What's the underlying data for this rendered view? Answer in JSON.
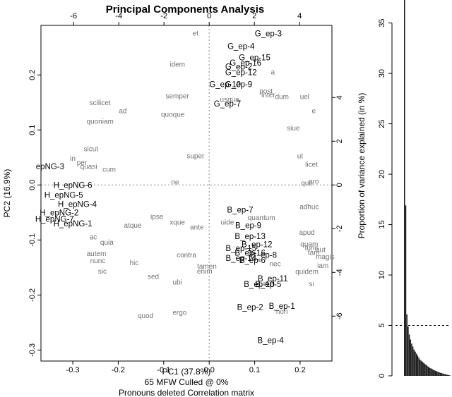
{
  "chart_data": [
    {
      "type": "scatter",
      "title": "Principal Components Analysis",
      "xlabel": "PC1 (37.8%)",
      "ylabel": "PC2 (16.9%)",
      "subtitle_lines": [
        "65 MFW  Culled @ 0%",
        "Pronouns deleted Correlation matrix"
      ],
      "xlim": [
        -0.37,
        0.27
      ],
      "ylim": [
        -0.32,
        0.29
      ],
      "x_ticks": [
        "-0.3",
        "-0.2",
        "-0.1",
        "0.0",
        "0.1",
        "0.2"
      ],
      "y_ticks": [
        "-0.3",
        "-0.2",
        "-0.1",
        "0.0",
        "0.1",
        "0.2"
      ],
      "x_ticks_top": [
        "-6",
        "-4",
        "-2",
        "0",
        "2",
        "4"
      ],
      "y_ticks_right": [
        "-6",
        "-4",
        "-2",
        "0",
        "2",
        "4"
      ],
      "reference_lines": "dotted at PC1 = 0 and PC2 = 0",
      "text_labels": [
        {
          "label": "G_ep-3",
          "x": 0.13,
          "y": 0.275
        },
        {
          "label": "G_ep-4",
          "x": 0.07,
          "y": 0.252
        },
        {
          "label": "G_ep-15",
          "x": 0.1,
          "y": 0.232
        },
        {
          "label": "G_ep-16",
          "x": 0.08,
          "y": 0.222
        },
        {
          "label": "G_ep-2",
          "x": 0.065,
          "y": 0.215
        },
        {
          "label": "G_ep-12",
          "x": 0.07,
          "y": 0.205
        },
        {
          "label": "G_ep-10",
          "x": 0.035,
          "y": 0.183
        },
        {
          "label": "G_ep-9",
          "x": 0.065,
          "y": 0.183
        },
        {
          "label": "G_ep-7",
          "x": 0.04,
          "y": 0.148
        },
        {
          "label": "epNG-3",
          "x": -0.35,
          "y": 0.034
        },
        {
          "label": "H_epNG-6",
          "x": -0.3,
          "y": 0.0
        },
        {
          "label": "H_epNG-5",
          "x": -0.32,
          "y": -0.018
        },
        {
          "label": "H_epNG-4",
          "x": -0.29,
          "y": -0.035
        },
        {
          "label": "H_epNG-2",
          "x": -0.33,
          "y": -0.05
        },
        {
          "label": "H_epNG-7",
          "x": -0.34,
          "y": -0.062
        },
        {
          "label": "H_epNG-1",
          "x": -0.3,
          "y": -0.07
        },
        {
          "label": "B_ep-7",
          "x": 0.068,
          "y": -0.045
        },
        {
          "label": "B_ep-9",
          "x": 0.086,
          "y": -0.073
        },
        {
          "label": "B_ep-13",
          "x": 0.09,
          "y": -0.093
        },
        {
          "label": "B_ep-12",
          "x": 0.105,
          "y": -0.108
        },
        {
          "label": "B_ep-15",
          "x": 0.07,
          "y": -0.115
        },
        {
          "label": "B_ep-16",
          "x": 0.09,
          "y": -0.123
        },
        {
          "label": "B_ep-8",
          "x": 0.12,
          "y": -0.127
        },
        {
          "label": "B_ep-14",
          "x": 0.07,
          "y": -0.133
        },
        {
          "label": "B_ep-6",
          "x": 0.095,
          "y": -0.137
        },
        {
          "label": "B_ep-11",
          "x": 0.14,
          "y": -0.17
        },
        {
          "label": "B_ep-5",
          "x": 0.13,
          "y": -0.18
        },
        {
          "label": "B_ep-10",
          "x": 0.11,
          "y": -0.18
        },
        {
          "label": "B_ep-2",
          "x": 0.09,
          "y": -0.222
        },
        {
          "label": "B_ep-1",
          "x": 0.16,
          "y": -0.22
        },
        {
          "label": "B_ep-4",
          "x": 0.135,
          "y": -0.282
        }
      ],
      "loading_words": [
        {
          "label": "et",
          "x": -0.03,
          "y": 0.275
        },
        {
          "label": "idem",
          "x": -0.07,
          "y": 0.219
        },
        {
          "label": "a",
          "x": 0.14,
          "y": 0.205
        },
        {
          "label": "post",
          "x": 0.125,
          "y": 0.17
        },
        {
          "label": "inter",
          "x": 0.13,
          "y": 0.163
        },
        {
          "label": "dum",
          "x": 0.16,
          "y": 0.16
        },
        {
          "label": "uel",
          "x": 0.21,
          "y": 0.16
        },
        {
          "label": "semper",
          "x": -0.07,
          "y": 0.161
        },
        {
          "label": "usque",
          "x": 0.045,
          "y": 0.155
        },
        {
          "label": "scilicet",
          "x": -0.24,
          "y": 0.149
        },
        {
          "label": "ad",
          "x": -0.19,
          "y": 0.134
        },
        {
          "label": "e",
          "x": 0.23,
          "y": 0.134
        },
        {
          "label": "quoque",
          "x": -0.08,
          "y": 0.128
        },
        {
          "label": "quoniam",
          "x": -0.24,
          "y": 0.115
        },
        {
          "label": "siue",
          "x": 0.185,
          "y": 0.103
        },
        {
          "label": "sicut",
          "x": -0.26,
          "y": 0.065
        },
        {
          "label": "super",
          "x": -0.03,
          "y": 0.052
        },
        {
          "label": "ut",
          "x": 0.2,
          "y": 0.052
        },
        {
          "label": "in",
          "x": -0.3,
          "y": 0.048
        },
        {
          "label": "per",
          "x": -0.28,
          "y": 0.04
        },
        {
          "label": "licet",
          "x": 0.225,
          "y": 0.037
        },
        {
          "label": "quasi",
          "x": -0.265,
          "y": 0.033
        },
        {
          "label": "cum",
          "x": -0.22,
          "y": 0.028
        },
        {
          "label": "ne",
          "x": -0.075,
          "y": 0.005
        },
        {
          "label": "quo",
          "x": 0.215,
          "y": 0.003
        },
        {
          "label": "pro",
          "x": 0.23,
          "y": 0.006
        },
        {
          "label": "adhuc",
          "x": 0.22,
          "y": -0.04
        },
        {
          "label": "quantum",
          "x": 0.115,
          "y": -0.06
        },
        {
          "label": "uide",
          "x": 0.04,
          "y": -0.068
        },
        {
          "label": "ipse",
          "x": -0.115,
          "y": -0.058
        },
        {
          "label": "xque",
          "x": -0.07,
          "y": -0.068
        },
        {
          "label": "atque",
          "x": -0.168,
          "y": -0.074
        },
        {
          "label": "ante",
          "x": -0.027,
          "y": -0.077
        },
        {
          "label": "apud",
          "x": 0.215,
          "y": -0.087
        },
        {
          "label": "ac",
          "x": -0.255,
          "y": -0.095
        },
        {
          "label": "quia",
          "x": -0.225,
          "y": -0.105
        },
        {
          "label": "quam",
          "x": 0.22,
          "y": -0.108
        },
        {
          "label": "tunc",
          "x": 0.225,
          "y": -0.115
        },
        {
          "label": "aut",
          "x": 0.245,
          "y": -0.118
        },
        {
          "label": "tam",
          "x": 0.23,
          "y": -0.123
        },
        {
          "label": "autem",
          "x": -0.248,
          "y": -0.125
        },
        {
          "label": "magis",
          "x": 0.255,
          "y": -0.131
        },
        {
          "label": "nunc",
          "x": -0.245,
          "y": -0.138
        },
        {
          "label": "contra",
          "x": -0.05,
          "y": -0.128
        },
        {
          "label": "nec",
          "x": 0.145,
          "y": -0.144
        },
        {
          "label": "iam",
          "x": 0.25,
          "y": -0.147
        },
        {
          "label": "hic",
          "x": -0.165,
          "y": -0.142
        },
        {
          "label": "tamen",
          "x": -0.005,
          "y": -0.148
        },
        {
          "label": "enim",
          "x": -0.01,
          "y": -0.157
        },
        {
          "label": "sic",
          "x": -0.235,
          "y": -0.157
        },
        {
          "label": "quidem",
          "x": 0.215,
          "y": -0.158
        },
        {
          "label": "sed",
          "x": -0.123,
          "y": -0.167
        },
        {
          "label": "ubi",
          "x": -0.07,
          "y": -0.177
        },
        {
          "label": "si",
          "x": 0.225,
          "y": -0.18
        },
        {
          "label": "non",
          "x": 0.16,
          "y": -0.23
        },
        {
          "label": "ergo",
          "x": -0.065,
          "y": -0.232
        },
        {
          "label": "quod",
          "x": -0.14,
          "y": -0.238
        }
      ]
    },
    {
      "type": "bar",
      "ylabel": "Proportion of variance explained (in %)",
      "ylim": [
        0,
        37
      ],
      "y_ticks": [
        "0",
        "5",
        "10",
        "15",
        "20",
        "25",
        "30",
        "35"
      ],
      "values": [
        37.8,
        16.9,
        6.1,
        4.9,
        4.1,
        3.6,
        3.2,
        2.9,
        2.6,
        2.4,
        2.2,
        2.0,
        1.8,
        1.6,
        1.5,
        1.4,
        1.3,
        1.2,
        1.1,
        1.0,
        0.9,
        0.8,
        0.75,
        0.7,
        0.6,
        0.55,
        0.5,
        0.45,
        0.4,
        0.35,
        0.3,
        0.27,
        0.24,
        0.2,
        0.17,
        0.14,
        0.1,
        0.08,
        0.05
      ],
      "reference_line": {
        "style": "dashed",
        "y": 5
      }
    }
  ]
}
